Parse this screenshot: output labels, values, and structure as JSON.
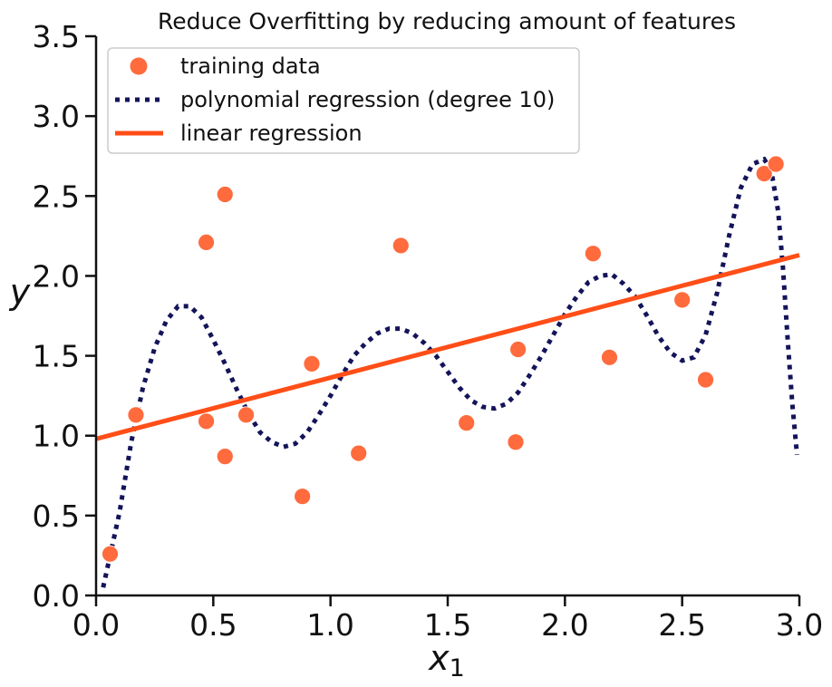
{
  "chart_data": {
    "type": "scatter",
    "title": "Reduce Overfitting by reducing amount of features",
    "xlabel": {
      "main": "x",
      "sub": "1"
    },
    "ylabel": "y",
    "xlim": [
      0.0,
      3.0
    ],
    "ylim": [
      0.0,
      3.5
    ],
    "x_ticks": [
      "0.0",
      "0.5",
      "1.0",
      "1.5",
      "2.0",
      "2.5",
      "3.0"
    ],
    "y_ticks": [
      "0.0",
      "0.5",
      "1.0",
      "1.5",
      "2.0",
      "2.5",
      "3.0",
      "3.5"
    ],
    "grid": false,
    "legend_position": "top-left",
    "series": [
      {
        "name": "training data",
        "kind": "scatter",
        "color": "#FF6B3D",
        "x": [
          0.06,
          0.17,
          0.47,
          0.47,
          0.55,
          0.55,
          0.64,
          0.88,
          0.92,
          1.12,
          1.3,
          1.58,
          1.79,
          1.8,
          2.12,
          2.19,
          2.5,
          2.6,
          2.85,
          2.9
        ],
        "y": [
          0.26,
          1.13,
          2.21,
          1.09,
          2.51,
          0.87,
          1.13,
          0.62,
          1.45,
          0.89,
          2.19,
          1.08,
          0.96,
          1.54,
          2.14,
          1.49,
          1.85,
          1.35,
          2.64,
          2.7
        ]
      },
      {
        "name": "polynomial regression (degree 10)",
        "kind": "line",
        "style": "dotted",
        "color": "#14145A",
        "x": [
          0.03,
          0.1,
          0.15,
          0.2,
          0.25,
          0.3,
          0.35,
          0.4,
          0.45,
          0.5,
          0.55,
          0.6,
          0.65,
          0.7,
          0.75,
          0.8,
          0.85,
          0.9,
          0.95,
          1.0,
          1.05,
          1.1,
          1.15,
          1.2,
          1.25,
          1.3,
          1.35,
          1.4,
          1.45,
          1.5,
          1.55,
          1.6,
          1.65,
          1.7,
          1.75,
          1.8,
          1.85,
          1.9,
          1.95,
          2.0,
          2.05,
          2.1,
          2.15,
          2.2,
          2.25,
          2.3,
          2.35,
          2.4,
          2.45,
          2.5,
          2.55,
          2.6,
          2.65,
          2.7,
          2.75,
          2.8,
          2.85,
          2.88,
          2.91,
          2.93,
          2.95,
          2.97,
          2.99
        ],
        "y": [
          0.05,
          0.52,
          0.96,
          1.3,
          1.55,
          1.72,
          1.81,
          1.81,
          1.74,
          1.6,
          1.45,
          1.29,
          1.14,
          1.02,
          0.96,
          0.93,
          0.95,
          1.02,
          1.13,
          1.25,
          1.38,
          1.5,
          1.58,
          1.64,
          1.67,
          1.67,
          1.64,
          1.58,
          1.5,
          1.4,
          1.3,
          1.22,
          1.18,
          1.17,
          1.2,
          1.27,
          1.38,
          1.5,
          1.63,
          1.76,
          1.87,
          1.96,
          2.0,
          2.01,
          1.95,
          1.87,
          1.75,
          1.62,
          1.52,
          1.47,
          1.49,
          1.63,
          1.9,
          2.25,
          2.55,
          2.7,
          2.73,
          2.66,
          2.4,
          2.05,
          1.6,
          1.2,
          0.88
        ]
      },
      {
        "name": "linear regression",
        "kind": "line",
        "style": "solid",
        "color": "#FF4E17",
        "x": [
          0.0,
          3.0
        ],
        "y": [
          0.98,
          2.13
        ]
      }
    ]
  }
}
